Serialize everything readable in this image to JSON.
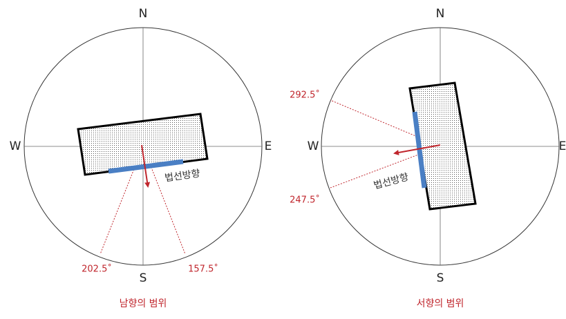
{
  "panels": [
    {
      "north": "N",
      "south": "S",
      "west": "W",
      "east": "E",
      "angle_left": "202.5˚",
      "angle_right": "157.5˚",
      "normal_label": "법선방향",
      "caption": "남향의 범위"
    },
    {
      "north": "N",
      "south": "S",
      "west": "W",
      "east": "E",
      "angle_upper": "292.5˚",
      "angle_lower": "247.5˚",
      "normal_label": "법선방향",
      "caption": "서향의 범위"
    }
  ]
}
